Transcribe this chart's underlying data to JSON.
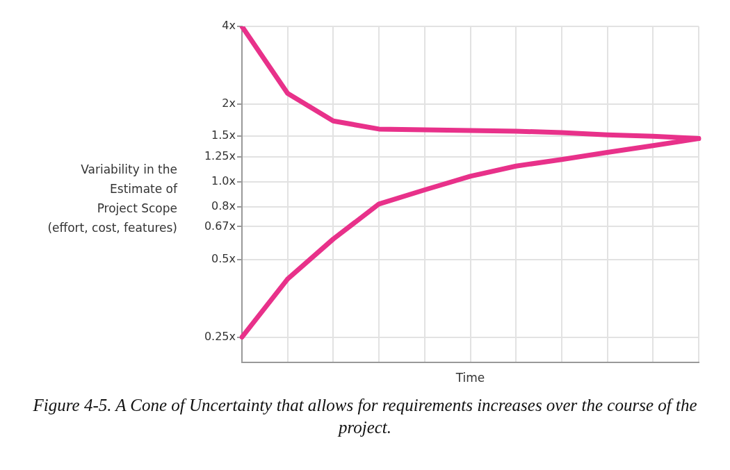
{
  "chart_data": {
    "type": "line",
    "xlabel": "Time",
    "ylabel": "Variability in the\nEstimate of\nProject Scope\n(effort, cost, features)",
    "annotations": [
      "Figure 4-5. A Cone of Uncertainty that allows for requirements increases over the course of the project."
    ],
    "categories": [
      null,
      null,
      null,
      null,
      null,
      null,
      null,
      null,
      null,
      null,
      null
    ],
    "series": [
      {
        "color": "#e8318a",
        "values": [
          4,
          2.2,
          1.72,
          1.6,
          1.59,
          1.58,
          1.57,
          1.55,
          1.52,
          1.5,
          1.47
        ]
      },
      {
        "color": "#e8318a",
        "values": [
          0.25,
          0.42,
          0.6,
          0.82,
          0.93,
          1.05,
          1.15,
          1.22,
          1.3,
          1.38,
          1.47
        ]
      }
    ],
    "log": "y",
    "ylim": [
      0.2,
      4
    ],
    "yticks": [
      {
        "value": 0.25,
        "label": "0.25x"
      },
      {
        "value": 0.5,
        "label": "0.5x"
      },
      {
        "value": 0.67,
        "label": "0.67x"
      },
      {
        "value": 0.8,
        "label": "0.8x"
      },
      {
        "value": 1,
        "label": "1.0x"
      },
      {
        "value": 1.25,
        "label": "1.25x"
      },
      {
        "value": 1.5,
        "label": "1.5x"
      },
      {
        "value": 2,
        "label": "2x"
      },
      {
        "value": 4,
        "label": "4x"
      }
    ],
    "grid": true,
    "tick_labels": "y",
    "marker": "none",
    "line_style": "solid",
    "legend": false
  }
}
